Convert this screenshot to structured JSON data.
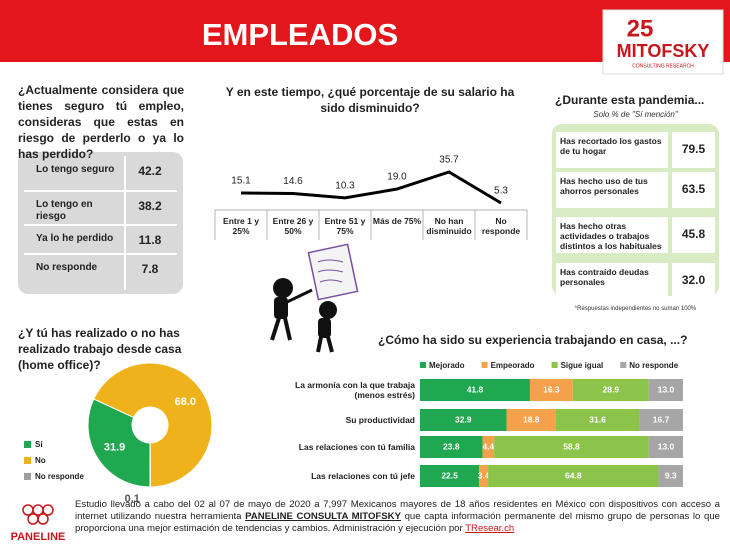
{
  "header": {
    "title": "EMPLEADOS",
    "logo": [
      "25",
      "MITOFSKY",
      "CONSULTING RESEARCH"
    ]
  },
  "tables": [
    {
      "title": "¿Actualmente considera que tienes seguro tú empleo, consideras que estas en riesgo de perderlo o ya lo has perdido?",
      "rows": [
        [
          "Lo tengo seguro",
          "42.2"
        ],
        [
          "Lo tengo en riesgo",
          "38.2"
        ],
        [
          "Ya lo he perdido",
          "11.8"
        ],
        [
          "No responde",
          "7.8"
        ]
      ]
    },
    {
      "title": "¿Durante esta pandemia...",
      "subtitle": "Solo % de \"Sí mención\"",
      "rows": [
        [
          "Has recortado los gastos de tu hogar",
          "79.5"
        ],
        [
          "Has hecho uso de tus ahorros personales",
          "63.5"
        ],
        [
          "Has hecho otras actividades o trabajos distintos a los habituales",
          "45.8"
        ],
        [
          "Has contraído deudas personales",
          "32.0"
        ]
      ],
      "note": "*Respuestas independientes no suman 100%"
    }
  ],
  "chart_data": [
    {
      "type": "line",
      "title": "Y en este tiempo, ¿qué porcentaje de su salario ha sido disminuido?",
      "categories": [
        "Entre 1 y 25%",
        "Entre 26 y 50%",
        "Entre 51 y 75%",
        "Más de 75%",
        "No han disminuido",
        "No responde"
      ],
      "values": [
        15.1,
        14.6,
        10.3,
        19.0,
        35.7,
        5.3
      ],
      "value_labels": [
        "15.1",
        "14.6",
        "10.3",
        "19.0",
        "35.7",
        "5.3"
      ],
      "color": "#000000"
    },
    {
      "type": "pie",
      "title": "¿Y tú has realizado o no has realizado trabajo desde casa (home office)?",
      "categories": [
        "Sí",
        "No",
        "No responde"
      ],
      "values": [
        31.9,
        68.0,
        0.1
      ],
      "value_labels": [
        "31.9",
        "68.0",
        "0.1"
      ],
      "colors": [
        "#1fa84f",
        "#f0b21b",
        "#9e9e9e"
      ],
      "legend": "left"
    },
    {
      "type": "stacked-bar",
      "orientation": "horizontal",
      "title": "¿Cómo ha sido su experiencia trabajando en casa, ...?",
      "categories": [
        "La armonía con la que trabaja (menos estrés)",
        "Su productividad",
        "Las relaciones con tú familia",
        "Las relaciones con tú jefe"
      ],
      "series": [
        {
          "name": "Mejorado",
          "color": "#1fa84f",
          "values": [
            41.8,
            32.9,
            23.8,
            22.5
          ]
        },
        {
          "name": "Empeorado",
          "color": "#f5a04a",
          "values": [
            16.3,
            18.8,
            4.4,
            3.4
          ]
        },
        {
          "name": "Sigue igual",
          "color": "#8cc34a",
          "values": [
            28.9,
            31.6,
            58.8,
            64.8
          ]
        },
        {
          "name": "No responde",
          "color": "#a6a6a6",
          "values": [
            13.0,
            16.7,
            13.0,
            9.3
          ],
          "value_labels": [
            "13.0",
            "16.7",
            "13.0",
            "9.3"
          ]
        }
      ],
      "legend": "top"
    }
  ],
  "footer": {
    "logo": "PANELINE",
    "text": [
      "Estudio llevado a cabo del 02 al 07 de mayo de 2020 a 7,997 Mexicanos mayores de 18 años residentes en México con dispositivos con acceso a internet utilizando nuestra herramienta ",
      "PANELINE CONSULTA MITOFSKY",
      " que capta información permanente del mismo grupo de personas lo que proporciona una mejor estimación de tendencias y cambios. Administración y ejecución por ",
      "TResear.ch"
    ]
  }
}
